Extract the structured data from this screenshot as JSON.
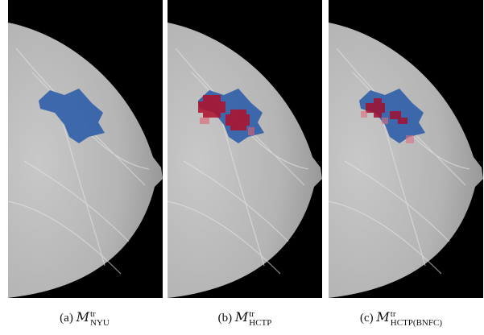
{
  "panels": [
    {
      "label": "(a)",
      "symbol": "M",
      "superscript": "tr",
      "subscript": "NYU"
    },
    {
      "label": "(b)",
      "symbol": "M",
      "superscript": "tr",
      "subscript": "HCTP"
    },
    {
      "label": "(c)",
      "symbol": "M",
      "superscript": "tr",
      "subscript": "HCTP(BNFC)"
    }
  ]
}
